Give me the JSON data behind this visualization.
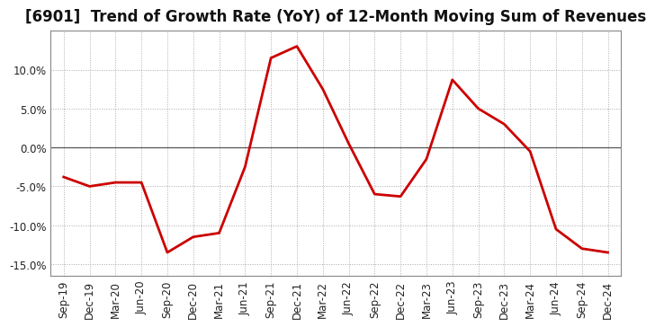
{
  "title": "[6901]  Trend of Growth Rate (YoY) of 12-Month Moving Sum of Revenues",
  "x_labels": [
    "Sep-19",
    "Dec-19",
    "Mar-20",
    "Jun-20",
    "Sep-20",
    "Dec-20",
    "Mar-21",
    "Jun-21",
    "Sep-21",
    "Dec-21",
    "Mar-22",
    "Jun-22",
    "Sep-22",
    "Dec-22",
    "Mar-23",
    "Jun-23",
    "Sep-23",
    "Dec-23",
    "Mar-24",
    "Jun-24",
    "Sep-24",
    "Dec-24"
  ],
  "y_values": [
    -3.8,
    -5.0,
    -4.5,
    -4.5,
    -13.5,
    -11.5,
    -11.0,
    -2.5,
    11.5,
    13.0,
    7.5,
    0.5,
    -6.0,
    -6.3,
    -1.5,
    8.7,
    5.0,
    3.0,
    -0.5,
    -10.5,
    -13.0,
    -13.5
  ],
  "line_color": "#cc0000",
  "line_width": 2.0,
  "ylim": [
    -16.5,
    15.0
  ],
  "ytick_vals": [
    -15.0,
    -10.0,
    -5.0,
    0.0,
    5.0,
    10.0
  ],
  "background_color": "#ffffff",
  "plot_bg_color": "#ffffff",
  "grid_color": "#aaaaaa",
  "title_fontsize": 12,
  "axis_fontsize": 8.5,
  "zero_line_color": "#555555"
}
